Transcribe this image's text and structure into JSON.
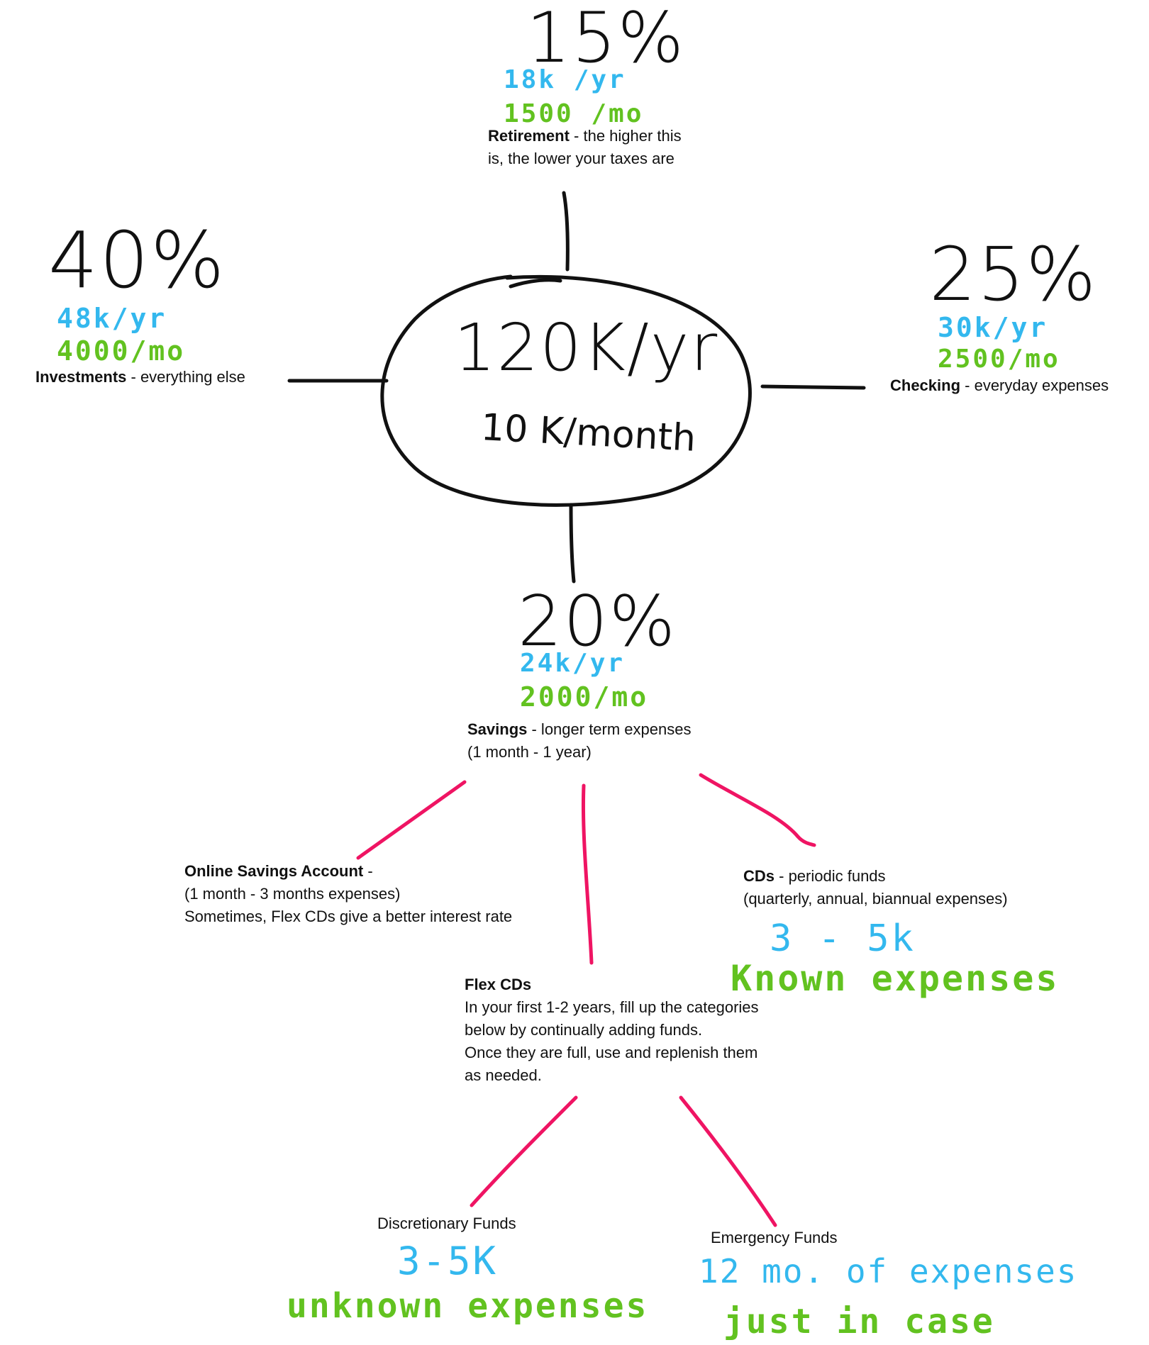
{
  "colors": {
    "ink": "#111111",
    "blue": "#33b8ee",
    "green": "#62c220",
    "connector": "#ef1463"
  },
  "center": {
    "yearly": "120K/yr",
    "monthly": "10 K/month"
  },
  "retirement": {
    "percent": "15%",
    "yearly": "18k /yr",
    "monthly": "1500 /mo",
    "name": "Retirement",
    "desc_1": " - the higher this",
    "desc_2": "is, the lower your taxes are"
  },
  "investments": {
    "percent": "40%",
    "yearly": "48k/yr",
    "monthly": "4000/mo",
    "name": "Investments",
    "desc": " - everything else"
  },
  "checking": {
    "percent": "25%",
    "yearly": "30k/yr",
    "monthly": "2500/mo",
    "name": "Checking",
    "desc": " - everyday expenses"
  },
  "savings": {
    "percent": "20%",
    "yearly": "24k/yr",
    "monthly": "2000/mo",
    "name": "Savings",
    "desc_1": " - longer term expenses",
    "desc_2": "(1 month - 1 year)"
  },
  "online_savings": {
    "name": "Online Savings Account",
    "name_suffix": " -",
    "line_2": "(1 month - 3 months expenses)",
    "line_3": "Sometimes, Flex CDs give a better interest rate"
  },
  "cds": {
    "name": "CDs",
    "desc": " - periodic funds",
    "line_2": "(quarterly, annual, biannual expenses)",
    "amount": "3 - 5k",
    "note": "Known expenses"
  },
  "flex_cds": {
    "name": "Flex CDs",
    "line_2": "In your first 1-2 years, fill up the categories",
    "line_3": "below by continually adding funds.",
    "line_4": "Once they are full, use and replenish them",
    "line_5": "as needed."
  },
  "discretionary": {
    "name": "Discretionary Funds",
    "amount": "3-5K",
    "note": "unknown expenses"
  },
  "emergency": {
    "name": "Emergency Funds",
    "amount": "12 mo. of expenses",
    "note": "just in case"
  }
}
